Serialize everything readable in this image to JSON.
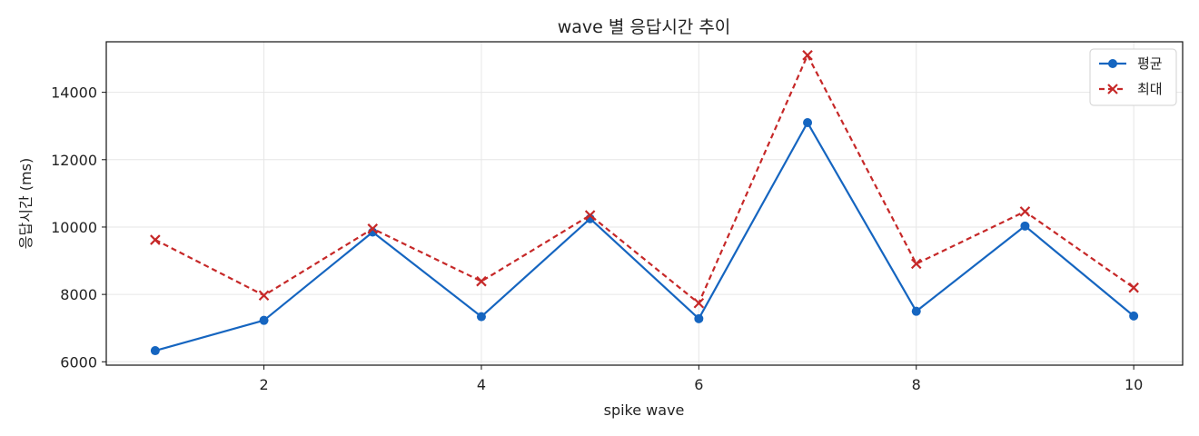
{
  "chart_data": {
    "type": "line",
    "title": "wave 별 응답시간 추이",
    "xlabel": "spike wave",
    "ylabel": "응답시간 (ms)",
    "x": [
      1,
      2,
      3,
      4,
      5,
      6,
      7,
      8,
      9,
      10
    ],
    "xlim": [
      0.55,
      10.45
    ],
    "ylim": [
      5900,
      15500
    ],
    "xticks": [
      2,
      4,
      6,
      8,
      10
    ],
    "yticks": [
      6000,
      8000,
      10000,
      12000,
      14000
    ],
    "grid": true,
    "legend_position": "top-right",
    "series": [
      {
        "name": "평균",
        "color": "#1565c0",
        "marker": "circle",
        "line_style": "solid",
        "values": [
          6330,
          7230,
          9850,
          7340,
          10250,
          7280,
          13100,
          7500,
          10030,
          7360
        ]
      },
      {
        "name": "최대",
        "color": "#c62828",
        "marker": "x",
        "line_style": "dashed",
        "values": [
          9620,
          7970,
          9950,
          8390,
          10350,
          7740,
          15100,
          8910,
          10460,
          8200
        ]
      }
    ]
  }
}
